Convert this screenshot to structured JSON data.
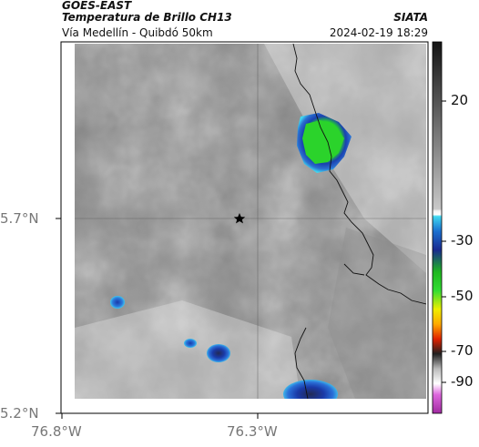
{
  "header": {
    "satellite": "GOES-EAST",
    "product": "Temperatura de Brillo CH13",
    "route": "Vía Medellín - Quibdó 50km",
    "brand": "SIATA",
    "datetime": "2024-02-19 18:29"
  },
  "map": {
    "lat_ticks": [
      "5.7°N",
      "5.2°N"
    ],
    "lon_ticks": [
      "76.8°W",
      "76.3°W"
    ],
    "marker": "star-marker"
  },
  "colorbar": {
    "ticks": [
      "20",
      "-30",
      "-50",
      "-70",
      "-90"
    ],
    "colors": {
      "green": "#22cc22",
      "blue": "#1133aa",
      "cyan": "#33ccee",
      "yellow": "#eeee00",
      "orange": "#ff8800",
      "red": "#cc1100",
      "magenta": "#cc33cc"
    }
  }
}
